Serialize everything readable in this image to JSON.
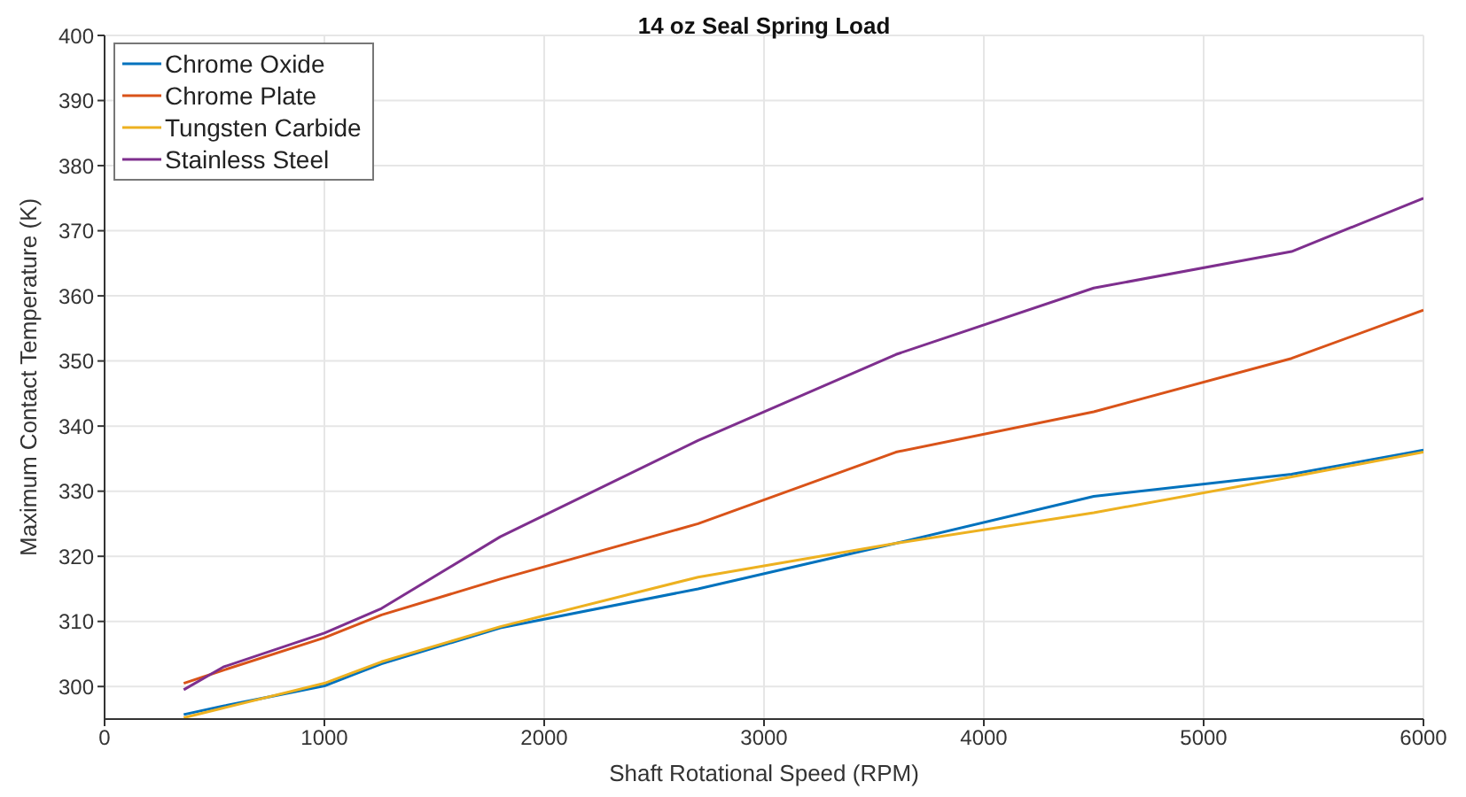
{
  "chart_data": {
    "type": "line",
    "title": "14 oz Seal Spring Load",
    "xlabel": "Shaft Rotational Speed (RPM)",
    "ylabel": "Maximum Contact Temperature (K)",
    "x": [
      360,
      540,
      1000,
      1260,
      1800,
      2700,
      3600,
      4500,
      5400,
      6000
    ],
    "series": [
      {
        "name": "Chrome Oxide",
        "color": "#0072bd",
        "values": [
          295.7,
          297,
          300.1,
          303.5,
          309,
          315,
          322,
          329.2,
          332.6,
          336.3
        ]
      },
      {
        "name": "Chrome Plate",
        "color": "#d95319",
        "values": [
          300.5,
          302.5,
          307.5,
          311,
          316.5,
          325,
          336,
          342.2,
          350.4,
          357.8
        ]
      },
      {
        "name": "Tungsten Carbide",
        "color": "#edb120",
        "values": [
          295.2,
          296.7,
          300.5,
          303.8,
          309.2,
          316.8,
          322,
          326.7,
          332.2,
          336
        ]
      },
      {
        "name": "Stainless Steel",
        "color": "#7e2f8e",
        "values": [
          299.5,
          303,
          308.2,
          312,
          323,
          337.8,
          351,
          361.2,
          366.8,
          375
        ]
      }
    ],
    "xlim": [
      0,
      6000
    ],
    "xticks": [
      0,
      1000,
      2000,
      3000,
      4000,
      5000,
      6000
    ],
    "ylim": [
      295,
      400
    ],
    "yticks": [
      300,
      310,
      320,
      330,
      340,
      350,
      360,
      370,
      380,
      390,
      400
    ],
    "grid": true,
    "legend": "top left",
    "marker": "none",
    "line_style": "solid"
  }
}
